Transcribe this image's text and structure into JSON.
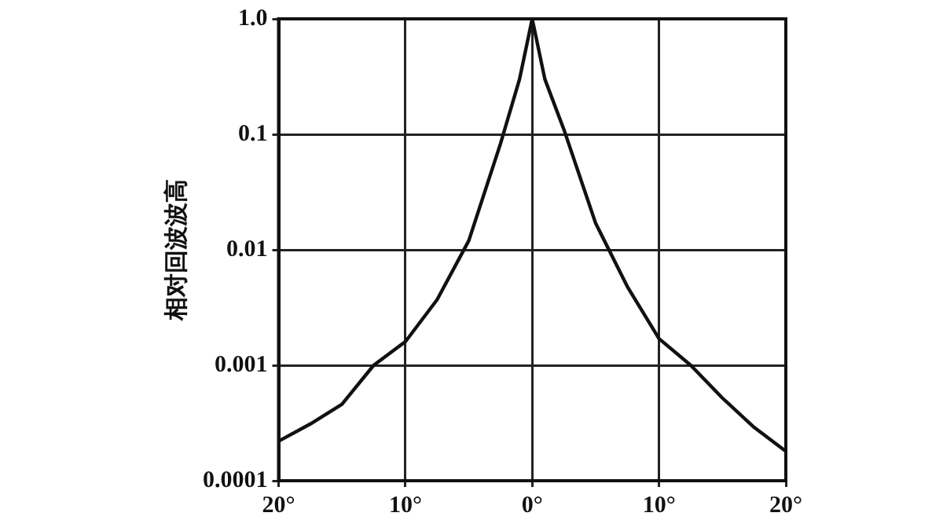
{
  "chart_data": {
    "type": "line",
    "ylabel": "相对回波波高",
    "log": "y",
    "grid": true,
    "legend": false,
    "marker": "none",
    "line_style": "solid",
    "xlim": [
      -20,
      20
    ],
    "xticks": [
      {
        "value": -20,
        "label": "20°"
      },
      {
        "value": -10,
        "label": "10°"
      },
      {
        "value": 0,
        "label": "0°"
      },
      {
        "value": 10,
        "label": "10°"
      },
      {
        "value": 20,
        "label": "20°"
      }
    ],
    "ylim": [
      0.0001,
      1
    ],
    "yticks": [
      0.0001,
      0.001,
      0.01,
      0.1,
      {
        "value": 1,
        "label": "1.0"
      }
    ],
    "series": [
      {
        "color": "#111111",
        "x": [
          -20,
          -17.5,
          -15,
          -12.5,
          -10,
          -7.5,
          -5,
          -2.5,
          -1,
          0,
          1,
          2.5,
          5,
          7.5,
          10,
          12.5,
          15,
          17.5,
          20
        ],
        "values": [
          0.00022,
          0.00031,
          0.00046,
          0.001,
          0.0016,
          0.0037,
          0.012,
          0.083,
          0.3,
          1,
          0.3,
          0.11,
          0.017,
          0.0048,
          0.0017,
          0.001,
          0.00052,
          0.00029,
          0.00018
        ]
      }
    ]
  }
}
